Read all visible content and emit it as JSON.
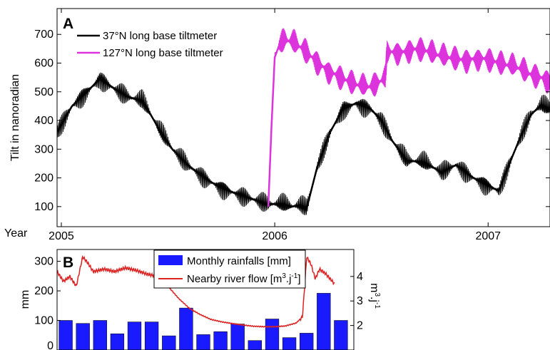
{
  "chart_data": [
    {
      "panel_label": "A",
      "type": "line",
      "ylabel": "Tilt in nanoradian",
      "xlabel": "Year",
      "xlim": [
        2004.98,
        2007.29
      ],
      "ylim": [
        30,
        790
      ],
      "x_tick_labels": [
        "2005",
        "2006",
        "2007"
      ],
      "x_ticks": [
        2005,
        2006,
        2007
      ],
      "y_ticks": [
        100,
        200,
        300,
        400,
        500,
        600,
        700
      ],
      "legend_position": "top-left",
      "series": [
        {
          "name": "37°N long base tiltmeter",
          "color": "#000000",
          "x": [
            2004.98,
            2005.05,
            2005.12,
            2005.18,
            2005.25,
            2005.32,
            2005.38,
            2005.45,
            2005.52,
            2005.6,
            2005.68,
            2005.75,
            2005.82,
            2005.9,
            2005.97,
            2006.03,
            2006.08,
            2006.12,
            2006.15,
            2006.2,
            2006.26,
            2006.32,
            2006.38,
            2006.45,
            2006.5,
            2006.55,
            2006.62,
            2006.7,
            2006.78,
            2006.85,
            2006.92,
            2006.98,
            2007.05,
            2007.1,
            2007.15,
            2007.2,
            2007.25,
            2007.29
          ],
          "values": [
            360,
            450,
            500,
            545,
            510,
            480,
            470,
            380,
            300,
            240,
            195,
            165,
            145,
            125,
            108,
            110,
            100,
            105,
            95,
            240,
            360,
            440,
            460,
            440,
            400,
            330,
            260,
            255,
            220,
            245,
            205,
            180,
            155,
            250,
            340,
            420,
            455,
            440
          ],
          "amplitude": 40
        },
        {
          "name": "127°N long base tiltmeter",
          "color": "#dd33dd",
          "x": [
            2005.97,
            2005.985,
            2006.0,
            2006.02,
            2006.05,
            2006.09,
            2006.14,
            2006.19,
            2006.24,
            2006.3,
            2006.36,
            2006.42,
            2006.47,
            2006.5,
            2006.52,
            2006.525,
            2006.55,
            2006.6,
            2006.65,
            2006.7,
            2006.75,
            2006.8,
            2006.85,
            2006.9,
            2006.95,
            2007.0,
            2007.05,
            2007.1,
            2007.15,
            2007.2,
            2007.25,
            2007.29
          ],
          "values": [
            100,
            380,
            620,
            660,
            680,
            670,
            645,
            610,
            580,
            555,
            530,
            515,
            520,
            540,
            560,
            640,
            640,
            640,
            650,
            645,
            630,
            620,
            615,
            610,
            620,
            615,
            600,
            590,
            580,
            560,
            550,
            540
          ],
          "amplitude": 50
        }
      ]
    },
    {
      "panel_label": "B",
      "type": "bar",
      "ylabel": "mm",
      "y2label_main": "m",
      "y2label_sup1": "3",
      "y2label_mid": ".j",
      "y2label_sup2": "-1",
      "ylim": [
        0,
        340
      ],
      "y_ticks": [
        0,
        100,
        200,
        300
      ],
      "y2lim": [
        1.0,
        5.1
      ],
      "y2_ticks": [
        2,
        3,
        4
      ],
      "legend_position": "top-center",
      "bar_series": {
        "name": "Monthly rainfalls [mm]",
        "color": "#1a1aff",
        "values": [
          100,
          90,
          100,
          55,
          95,
          95,
          48,
          142,
          52,
          62,
          88,
          32,
          105,
          42,
          57,
          192,
          100
        ]
      },
      "line_series": {
        "name_main": "Nearby river flow [m",
        "name_sup1": "3",
        "name_mid": ".j",
        "name_sup2": "-1",
        "name_end": "]",
        "color": "#dd2222",
        "x": [
          2004.98,
          2005.01,
          2005.04,
          2005.07,
          2005.1,
          2005.12,
          2005.15,
          2005.2,
          2005.25,
          2005.3,
          2005.35,
          2005.4,
          2005.45,
          2005.5,
          2005.55,
          2005.6,
          2005.65,
          2005.7,
          2005.75,
          2005.8,
          2005.85,
          2005.9,
          2005.95,
          2006.0,
          2006.05,
          2006.1,
          2006.13,
          2006.15,
          2006.17,
          2006.19,
          2006.21,
          2006.24,
          2006.28
        ],
        "values": [
          4.2,
          3.8,
          4.0,
          3.6,
          4.8,
          4.6,
          4.2,
          4.3,
          4.2,
          4.35,
          4.25,
          4.1,
          4.0,
          3.6,
          3.1,
          2.7,
          2.45,
          2.25,
          2.15,
          2.08,
          2.02,
          1.97,
          1.95,
          1.95,
          1.98,
          2.1,
          2.35,
          4.8,
          4.5,
          3.9,
          4.3,
          4.1,
          3.7
        ]
      }
    }
  ]
}
